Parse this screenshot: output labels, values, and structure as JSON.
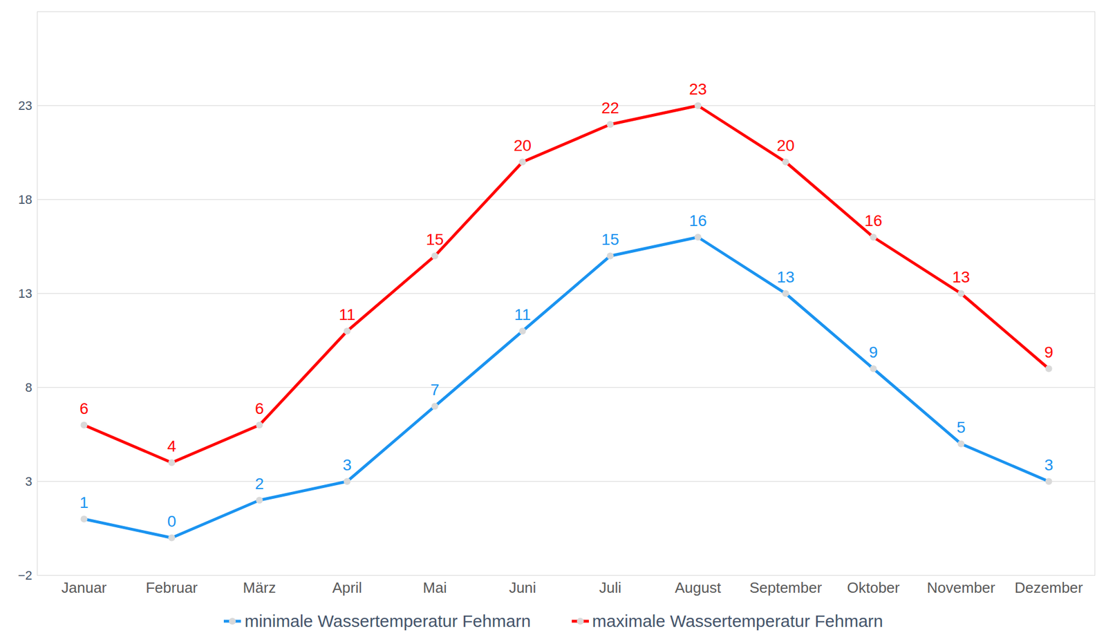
{
  "chart_data": {
    "type": "line",
    "categories": [
      "Januar",
      "Februar",
      "März",
      "April",
      "Mai",
      "Juni",
      "Juli",
      "August",
      "September",
      "Oktober",
      "November",
      "Dezember"
    ],
    "series": [
      {
        "name": "minimale Wassertemperatur Fehmarn",
        "color": "#1a93f0",
        "values": [
          1,
          0,
          2,
          3,
          7,
          11,
          15,
          16,
          13,
          9,
          5,
          3
        ],
        "marker": "circle"
      },
      {
        "name": "maximale Wassertemperatur Fehmarn",
        "color": "#ff0000",
        "values": [
          6,
          4,
          6,
          11,
          15,
          20,
          22,
          23,
          20,
          16,
          13,
          9
        ],
        "marker": "circle"
      }
    ],
    "ylim": [
      -2,
      28
    ],
    "yticks": [
      -2,
      3,
      8,
      13,
      18,
      23
    ],
    "grid": true,
    "data_labels": true,
    "legend": "bottom"
  }
}
